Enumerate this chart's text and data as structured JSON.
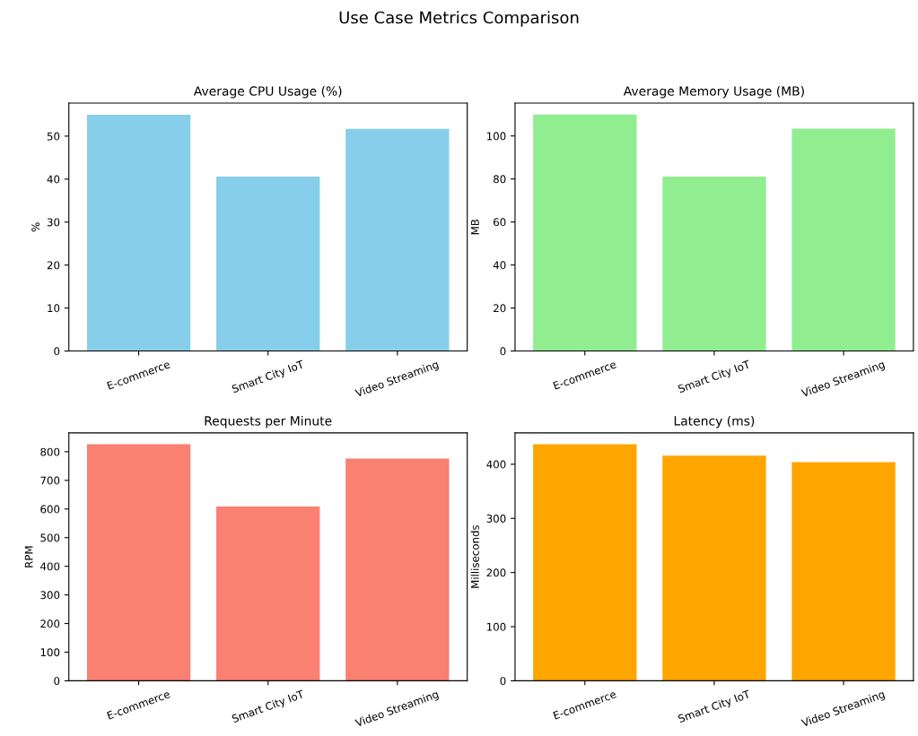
{
  "chart_data": [
    {
      "type": "bar",
      "title": "Average CPU Usage (%)",
      "annotations": [
        "Use Case Metrics Comparison"
      ],
      "ylabel": "%",
      "categories": [
        "E-commerce",
        "Smart City IoT",
        "Video Streaming"
      ],
      "values": [
        55.0,
        40.6,
        51.7
      ],
      "color": "#87ceeb",
      "ylim": [
        0,
        57.7
      ],
      "yticks": [
        0,
        10,
        20,
        30,
        40,
        50
      ]
    },
    {
      "type": "bar",
      "title": "Average Memory Usage (MB)",
      "ylabel": "MB",
      "categories": [
        "E-commerce",
        "Smart City IoT",
        "Video Streaming"
      ],
      "values": [
        110.0,
        81.1,
        103.4
      ],
      "color": "#90ee90",
      "ylim": [
        0,
        115.3
      ],
      "yticks": [
        0,
        20,
        40,
        60,
        80,
        100
      ]
    },
    {
      "type": "bar",
      "title": "Requests per Minute",
      "ylabel": "RPM",
      "categories": [
        "E-commerce",
        "Smart City IoT",
        "Video Streaming"
      ],
      "values": [
        826,
        609,
        776
      ],
      "color": "#fa8072",
      "ylim": [
        0,
        866
      ],
      "yticks": [
        0,
        100,
        200,
        300,
        400,
        500,
        600,
        700,
        800
      ]
    },
    {
      "type": "bar",
      "title": "Latency (ms)",
      "ylabel": "Milliseconds",
      "categories": [
        "E-commerce",
        "Smart City IoT",
        "Video Streaming"
      ],
      "values": [
        437,
        416,
        404
      ],
      "color": "#ffa500",
      "ylim": [
        0,
        458
      ],
      "yticks": [
        0,
        100,
        200,
        300,
        400
      ]
    }
  ]
}
